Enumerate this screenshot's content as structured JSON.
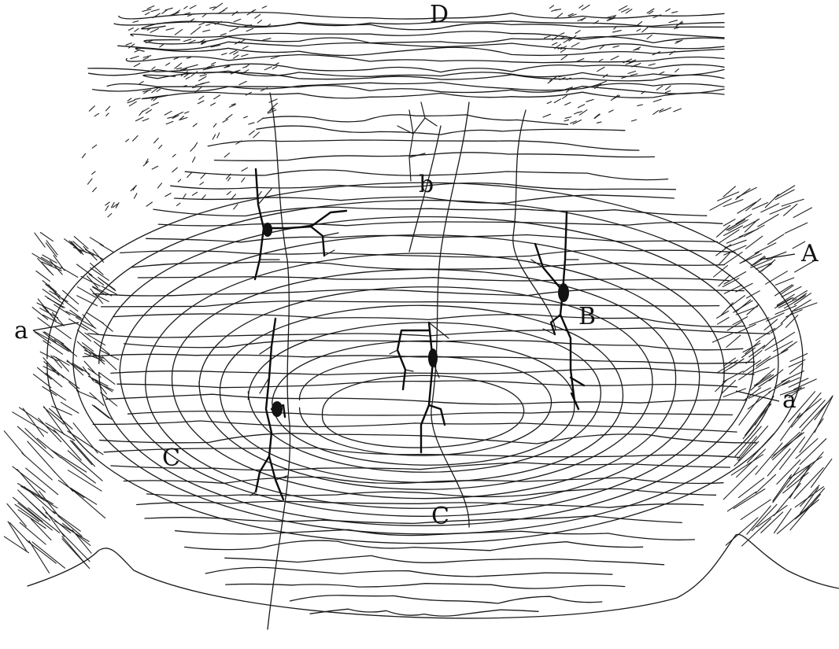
{
  "figure": {
    "labels": {
      "D": "D",
      "A": "A",
      "B": "B",
      "b": "b",
      "a_left": "a",
      "a_right": "a",
      "C_left": "C",
      "C_center": "C"
    }
  }
}
